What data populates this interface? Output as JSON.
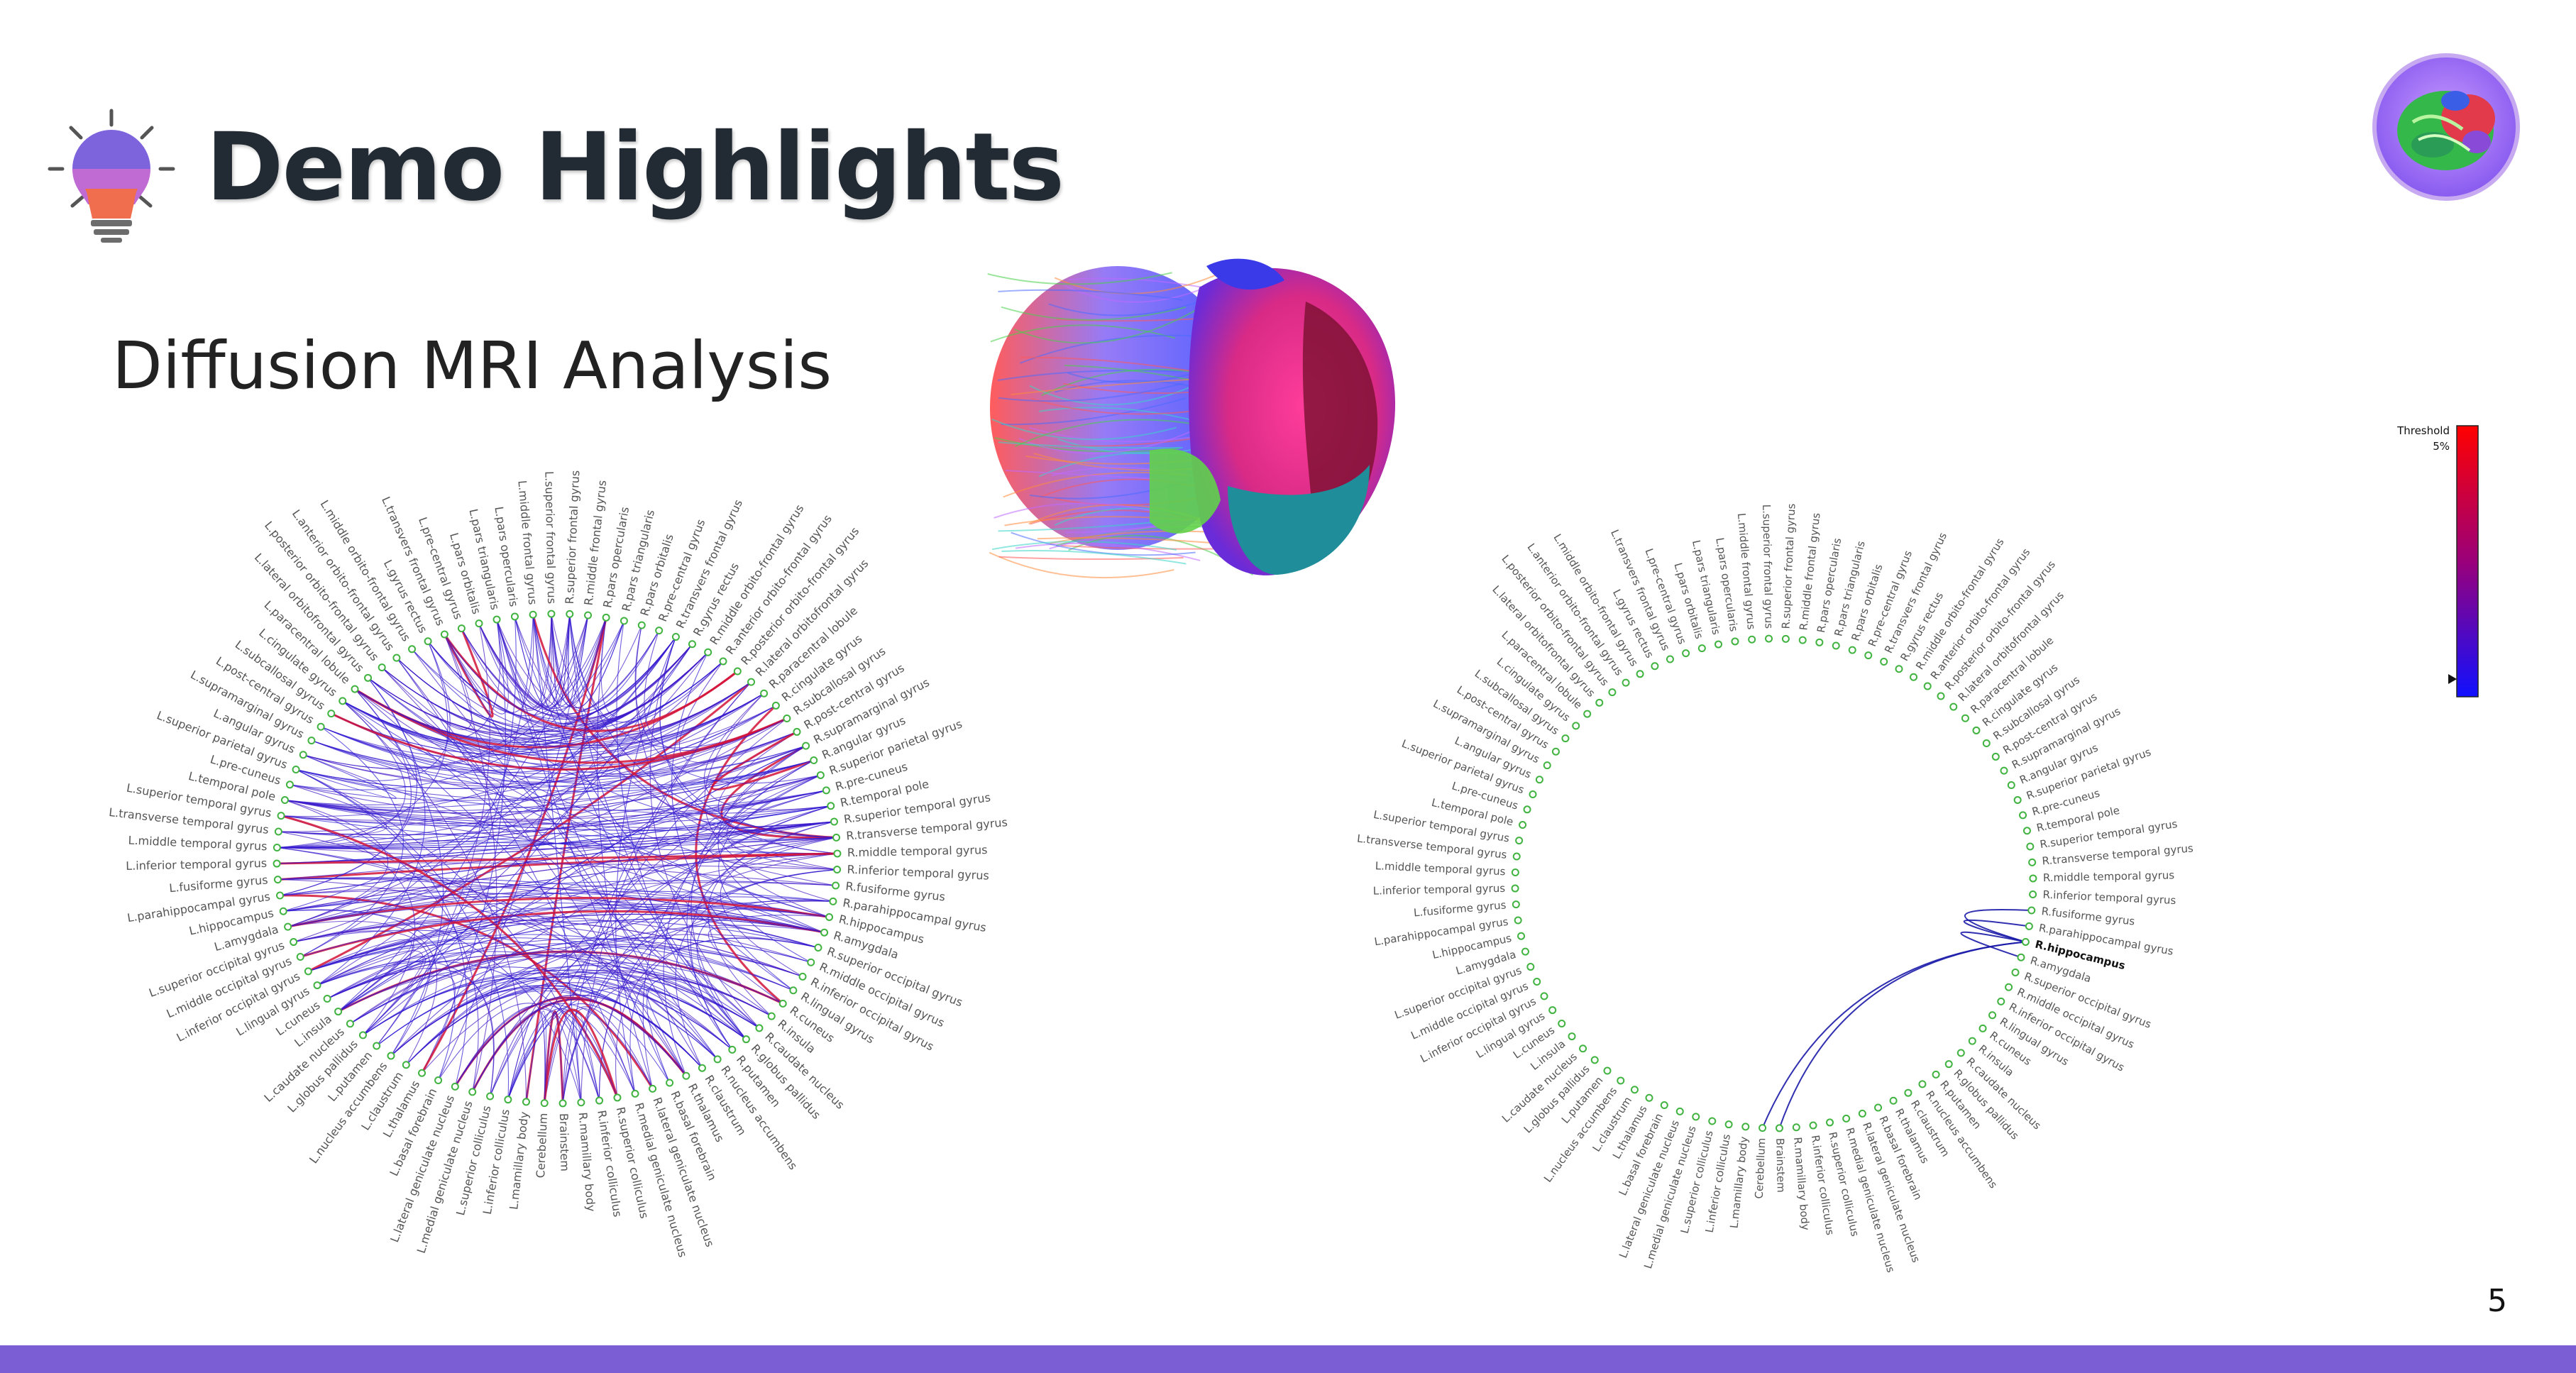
{
  "slide": {
    "title": "Demo Highlights",
    "subtitle": "Diffusion MRI Analysis",
    "page_number": "5"
  },
  "legend": {
    "title": "Threshold",
    "value": "5%"
  },
  "icons": {
    "header": "lightbulb-icon",
    "corner": "brain-logo-icon"
  },
  "colors": {
    "footer": "#7b5ed4",
    "edge_low": "#2a1bd6",
    "edge_high": "#d4143a",
    "node": "#41b341"
  },
  "right_connectogram": {
    "highlighted_node": "R.hippocampus"
  },
  "regions": [
    "R.superior frontal gyrus",
    "R.middle frontal gyrus",
    "R.pars opercularis",
    "R.pars triangularis",
    "R.pars orbitalis",
    "R.pre-central gyrus",
    "R.transvers frontal gyrus",
    "R.gyrus rectus",
    "R.middle orbito-frontal gyrus",
    "R.anterior orbito-frontal gyrus",
    "R.posterior orbito-frontal gyrus",
    "R.lateral orbitofrontal gyrus",
    "R.paracentral lobule",
    "R.cingulate gyrus",
    "R.subcallosal gyrus",
    "R.post-central gyrus",
    "R.supramarginal gyrus",
    "R.angular gyrus",
    "R.superior parietal gyrus",
    "R.pre-cuneus",
    "R.temporal pole",
    "R.superior temporal gyrus",
    "R.transverse temporal gyrus",
    "R.middle temporal gyrus",
    "R.inferior temporal gyrus",
    "R.fusiforme gyrus",
    "R.parahippocampal gyrus",
    "R.hippocampus",
    "R.amygdala",
    "R.superior occipital gyrus",
    "R.middle occipital gyrus",
    "R.inferior occipital gyrus",
    "R.lingual gyrus",
    "R.cuneus",
    "R.insula",
    "R.caudate nucleus",
    "R.globus pallidus",
    "R.putamen",
    "R.nucleus accumbens",
    "R.claustrum",
    "R.thalamus",
    "R.basal forebrain",
    "R.lateral geniculate nucleus",
    "R.medial geniculate nucleus",
    "R.superior colliculus",
    "R.inferior colliculus",
    "R.mamillary body",
    "Brainstem",
    "Cerebellum",
    "L.mamillary body",
    "L.inferior colliculus",
    "L.superior colliculus",
    "L.medial geniculate nucleus",
    "L.lateral geniculate nucleus",
    "L.basal forebrain",
    "L.thalamus",
    "L.claustrum",
    "L.nucleus accumbens",
    "L.putamen",
    "L.globus pallidus",
    "L.caudate nucleus",
    "L.insula",
    "L.cuneus",
    "L.lingual gyrus",
    "L.inferior occipital gyrus",
    "L.middle occipital gyrus",
    "L.superior occipital gyrus",
    "L.amygdala",
    "L.hippocampus",
    "L.parahippocampal gyrus",
    "L.fusiforme gyrus",
    "L.inferior temporal gyrus",
    "L.middle temporal gyrus",
    "L.transverse temporal gyrus",
    "L.superior temporal gyrus",
    "L.temporal pole",
    "L.pre-cuneus",
    "L.superior parietal gyrus",
    "L.angular gyrus",
    "L.supramarginal gyrus",
    "L.post-central gyrus",
    "L.subcallosal gyrus",
    "L.cingulate gyrus",
    "L.paracentral lobule",
    "L.lateral orbitofrontal gyrus",
    "L.posterior orbito-frontal gyrus",
    "L.anterior orbito-frontal gyrus",
    "L.middle orbito-frontal gyrus",
    "L.gyrus rectus",
    "L.transvers frontal gyrus",
    "L.pre-central gyrus",
    "L.pars orbitalis",
    "L.pars triangularis",
    "L.pars opercularis",
    "L.middle frontal gyrus",
    "L.superior frontal gyrus"
  ]
}
